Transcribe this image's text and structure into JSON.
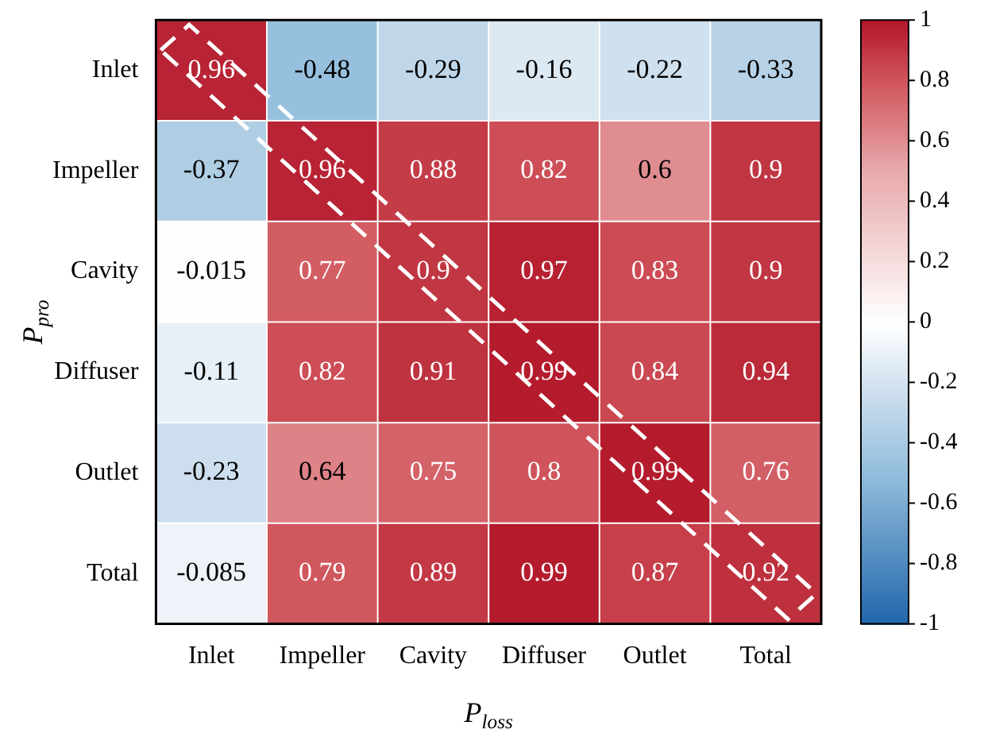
{
  "chart_data": {
    "type": "heatmap",
    "xlabel": "P$_{loss}$",
    "ylabel": "P$_{pro}$",
    "categories": [
      "Inlet",
      "Impeller",
      "Cavity",
      "Diffuser",
      "Outlet",
      "Total"
    ],
    "y_categories": [
      "Inlet",
      "Impeller",
      "Cavity",
      "Diffuser",
      "Outlet",
      "Total"
    ],
    "cells": [
      [
        0.96,
        -0.48,
        -0.29,
        -0.16,
        -0.22,
        -0.33
      ],
      [
        -0.37,
        0.96,
        0.88,
        0.82,
        0.6,
        0.9
      ],
      [
        -0.015,
        0.77,
        0.9,
        0.97,
        0.83,
        0.9
      ],
      [
        -0.11,
        0.82,
        0.91,
        0.99,
        0.84,
        0.94
      ],
      [
        -0.23,
        0.64,
        0.75,
        0.8,
        0.99,
        0.76
      ],
      [
        -0.085,
        0.79,
        0.89,
        0.99,
        0.87,
        0.92
      ]
    ],
    "clim": [
      -1,
      1
    ],
    "cticks": [
      -1,
      -0.8,
      -0.6,
      -0.4,
      -0.2,
      0,
      0.2,
      0.4,
      0.6,
      0.8,
      1
    ],
    "data_labels": true
  }
}
